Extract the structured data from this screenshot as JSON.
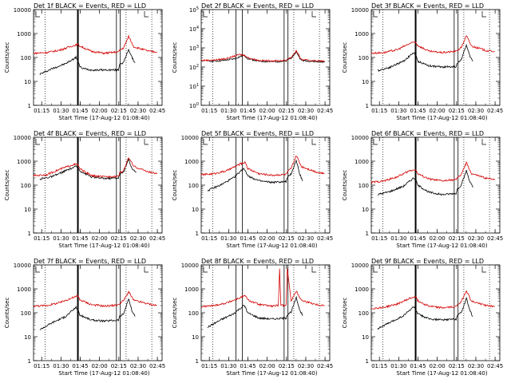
{
  "figure": {
    "time_ticks": [
      "01:15",
      "01:30",
      "01:45",
      "02:00",
      "02:15",
      "02:30",
      "02:45"
    ],
    "xlabel": "Start Time (17-Aug-12 01:08:40)",
    "ylabel": "Counts/sec"
  },
  "chart_data": [
    {
      "type": "line",
      "panel": 1,
      "title": "Det 1f BLACK = Events, RED = LLD",
      "x_unit": "minutes since 01:08:40",
      "xlim": [
        0,
        100
      ],
      "yscale": "log",
      "ylim": [
        1,
        10000
      ],
      "ytick_labels": [
        "1",
        "10",
        "100",
        "1000",
        "10000"
      ],
      "series": [
        {
          "name": "Events",
          "color": "#000000",
          "x": [
            5,
            15,
            25,
            33,
            34.5,
            36,
            38,
            45,
            55,
            66,
            67,
            70,
            74,
            76.5,
            79
          ],
          "y": [
            20,
            35,
            55,
            100,
            80,
            40,
            35,
            30,
            30,
            30,
            55,
            60,
            220,
            100,
            60
          ]
        },
        {
          "name": "LLD",
          "color": "#d40000",
          "x": [
            0,
            10,
            20,
            30,
            34.5,
            36,
            45,
            55,
            66,
            67,
            70,
            74,
            78,
            90,
            96
          ],
          "y": [
            150,
            160,
            200,
            300,
            350,
            300,
            180,
            150,
            170,
            200,
            250,
            750,
            280,
            180,
            170
          ]
        }
      ],
      "vlines": [
        {
          "x": [
            34.5
          ],
          "style": "thick"
        },
        {
          "x": [
            64.5,
            67.5
          ],
          "style": "double"
        },
        {
          "x": [
            9,
            72,
            92
          ],
          "style": "dotted"
        }
      ]
    },
    {
      "type": "line",
      "panel": 2,
      "title": "Det 2f BLACK = Events, RED = LLD",
      "x_unit": "minutes since 01:08:40",
      "xlim": [
        0,
        100
      ],
      "yscale": "log",
      "ylim": [
        1,
        100000
      ],
      "ytick_labels": [
        "10^0",
        "10^1",
        "10^2",
        "10^3",
        "10^4",
        "10^5"
      ],
      "series": [
        {
          "name": "Events",
          "color": "#000000",
          "x": [
            5,
            15,
            25,
            33,
            34.5,
            36,
            45,
            55,
            66,
            67,
            70,
            74,
            78,
            90,
            96
          ],
          "y": [
            200,
            210,
            260,
            400,
            360,
            280,
            200,
            190,
            200,
            240,
            300,
            600,
            220,
            190,
            185
          ]
        },
        {
          "name": "LLD",
          "color": "#d40000",
          "x": [
            0,
            10,
            20,
            30,
            34.5,
            36,
            45,
            55,
            66,
            67,
            70,
            74,
            78,
            90,
            96
          ],
          "y": [
            220,
            230,
            280,
            450,
            400,
            310,
            220,
            210,
            220,
            260,
            320,
            700,
            240,
            210,
            200
          ]
        }
      ],
      "vlines": [
        {
          "x": [
            27,
            32
          ],
          "style": "double"
        },
        {
          "x": [
            64.5,
            67.5
          ],
          "style": "double"
        },
        {
          "x": [
            9,
            72,
            92
          ],
          "style": "dotted"
        }
      ]
    },
    {
      "type": "line",
      "panel": 3,
      "title": "Det 3f BLACK = Events, RED = LLD",
      "x_unit": "minutes since 01:08:40",
      "xlim": [
        0,
        100
      ],
      "yscale": "log",
      "ylim": [
        1,
        10000
      ],
      "ytick_labels": [
        "1",
        "10",
        "100",
        "1000",
        "10000"
      ],
      "series": [
        {
          "name": "Events",
          "color": "#000000",
          "x": [
            5,
            15,
            25,
            33,
            34.5,
            36,
            45,
            55,
            66,
            67,
            70,
            74,
            76.5,
            79
          ],
          "y": [
            28,
            40,
            70,
            160,
            130,
            70,
            45,
            40,
            42,
            60,
            80,
            350,
            120,
            70
          ]
        },
        {
          "name": "LLD",
          "color": "#d40000",
          "x": [
            0,
            10,
            20,
            30,
            34.5,
            36,
            45,
            55,
            66,
            67,
            70,
            74,
            78,
            90,
            96
          ],
          "y": [
            150,
            160,
            210,
            380,
            450,
            320,
            180,
            160,
            180,
            200,
            260,
            800,
            300,
            190,
            180
          ]
        }
      ],
      "vlines": [
        {
          "x": [
            34.5
          ],
          "style": "thick"
        },
        {
          "x": [
            64.5,
            67.5
          ],
          "style": "double"
        },
        {
          "x": [
            9,
            72,
            92
          ],
          "style": "dotted"
        }
      ]
    },
    {
      "type": "line",
      "panel": 4,
      "title": "Det 4f BLACK = Events, RED = LLD",
      "x_unit": "minutes since 01:08:40",
      "xlim": [
        0,
        100
      ],
      "yscale": "log",
      "ylim": [
        1,
        10000
      ],
      "ytick_labels": [
        "1",
        "10",
        "100",
        "1000",
        "10000"
      ],
      "series": [
        {
          "name": "Events",
          "color": "#000000",
          "x": [
            5,
            15,
            25,
            33,
            34.5,
            36,
            45,
            55,
            66,
            67,
            70,
            74,
            76.5,
            80
          ],
          "y": [
            180,
            230,
            400,
            600,
            550,
            400,
            220,
            190,
            200,
            280,
            350,
            1200,
            500,
            350
          ]
        },
        {
          "name": "LLD",
          "color": "#d40000",
          "x": [
            0,
            10,
            20,
            30,
            34.5,
            36,
            45,
            55,
            66,
            67,
            70,
            74,
            78,
            90,
            96
          ],
          "y": [
            250,
            270,
            450,
            700,
            750,
            480,
            250,
            220,
            240,
            320,
            400,
            1400,
            600,
            350,
            300
          ]
        }
      ],
      "vlines": [
        {
          "x": [
            34.5
          ],
          "style": "thick"
        },
        {
          "x": [
            64.5,
            67.5
          ],
          "style": "double"
        },
        {
          "x": [
            9,
            72,
            92
          ],
          "style": "dotted"
        }
      ]
    },
    {
      "type": "line",
      "panel": 5,
      "title": "Det 5f BLACK = Events, RED = LLD",
      "x_unit": "minutes since 01:08:40",
      "xlim": [
        0,
        100
      ],
      "yscale": "log",
      "ylim": [
        1,
        10000
      ],
      "ytick_labels": [
        "1",
        "10",
        "100",
        "1000",
        "10000"
      ],
      "series": [
        {
          "name": "Events",
          "color": "#000000",
          "x": [
            5,
            15,
            25,
            33,
            34.5,
            36,
            45,
            55,
            66,
            67,
            70,
            74,
            76.5,
            79
          ],
          "y": [
            60,
            100,
            200,
            500,
            400,
            250,
            150,
            130,
            140,
            200,
            300,
            1100,
            300,
            150
          ]
        },
        {
          "name": "LLD",
          "color": "#d40000",
          "x": [
            0,
            10,
            20,
            30,
            34.5,
            36,
            45,
            55,
            66,
            67,
            70,
            74,
            78,
            90,
            96
          ],
          "y": [
            270,
            300,
            400,
            750,
            900,
            500,
            300,
            260,
            280,
            350,
            500,
            1700,
            600,
            350,
            300
          ]
        }
      ],
      "vlines": [
        {
          "x": [
            27,
            32
          ],
          "style": "double"
        },
        {
          "x": [
            64.5,
            67.5
          ],
          "style": "double"
        },
        {
          "x": [
            9,
            72,
            92
          ],
          "style": "dotted"
        }
      ]
    },
    {
      "type": "line",
      "panel": 6,
      "title": "Det 6f BLACK = Events, RED = LLD",
      "x_unit": "minutes since 01:08:40",
      "xlim": [
        0,
        100
      ],
      "yscale": "log",
      "ylim": [
        1,
        10000
      ],
      "ytick_labels": [
        "1",
        "10",
        "100",
        "1000",
        "10000"
      ],
      "series": [
        {
          "name": "Events",
          "color": "#000000",
          "x": [
            5,
            15,
            25,
            33,
            34.5,
            36,
            45,
            55,
            66,
            67,
            70,
            74,
            76.5,
            79
          ],
          "y": [
            40,
            55,
            90,
            200,
            170,
            100,
            50,
            40,
            45,
            70,
            100,
            400,
            150,
            80
          ]
        },
        {
          "name": "LLD",
          "color": "#d40000",
          "x": [
            0,
            10,
            20,
            30,
            34.5,
            36,
            45,
            55,
            66,
            67,
            70,
            74,
            78,
            90,
            96
          ],
          "y": [
            130,
            150,
            220,
            400,
            450,
            300,
            180,
            150,
            170,
            200,
            280,
            850,
            300,
            190,
            180
          ]
        }
      ],
      "vlines": [
        {
          "x": [
            34.5
          ],
          "style": "thick"
        },
        {
          "x": [
            64.5,
            67.5
          ],
          "style": "double"
        },
        {
          "x": [
            9,
            72,
            92
          ],
          "style": "dotted"
        }
      ]
    },
    {
      "type": "line",
      "panel": 7,
      "title": "Det 7f BLACK = Events, RED = LLD",
      "x_unit": "minutes since 01:08:40",
      "xlim": [
        0,
        100
      ],
      "yscale": "log",
      "ylim": [
        1,
        10000
      ],
      "ytick_labels": [
        "1",
        "10",
        "100",
        "1000",
        "10000"
      ],
      "series": [
        {
          "name": "Events",
          "color": "#000000",
          "x": [
            5,
            15,
            25,
            33,
            34.5,
            36,
            45,
            55,
            66,
            67,
            70,
            74,
            76.5,
            79
          ],
          "y": [
            20,
            40,
            70,
            170,
            140,
            80,
            50,
            45,
            50,
            70,
            90,
            380,
            120,
            70
          ]
        },
        {
          "name": "LLD",
          "color": "#d40000",
          "x": [
            0,
            10,
            20,
            30,
            34.5,
            36,
            45,
            55,
            66,
            67,
            70,
            74,
            78,
            90,
            96
          ],
          "y": [
            190,
            200,
            260,
            420,
            500,
            350,
            220,
            190,
            210,
            250,
            320,
            750,
            330,
            230,
            200
          ]
        }
      ],
      "vlines": [
        {
          "x": [
            34.5
          ],
          "style": "thick"
        },
        {
          "x": [
            64.5,
            67.5
          ],
          "style": "double"
        },
        {
          "x": [
            9,
            72,
            92
          ],
          "style": "dotted"
        }
      ]
    },
    {
      "type": "line",
      "panel": 8,
      "title": "Det 8f BLACK = Events, RED = LLD",
      "x_unit": "minutes since 01:08:40",
      "xlim": [
        0,
        100
      ],
      "yscale": "log",
      "ylim": [
        1,
        10000
      ],
      "ytick_labels": [
        "1",
        "10",
        "100",
        "1000",
        "10000"
      ],
      "series": [
        {
          "name": "Events",
          "color": "#000000",
          "x": [
            5,
            15,
            25,
            33,
            34.5,
            36,
            45,
            55,
            66,
            67,
            70,
            74,
            76.5,
            79
          ],
          "y": [
            25,
            50,
            90,
            200,
            170,
            100,
            60,
            55,
            60,
            85,
            110,
            420,
            140,
            75
          ]
        },
        {
          "name": "LLD",
          "color": "#d40000",
          "x": [
            0,
            10,
            20,
            30,
            34.5,
            36,
            45,
            55,
            60,
            61,
            62,
            66,
            67,
            70,
            74,
            78,
            90,
            96
          ],
          "y": [
            180,
            200,
            260,
            420,
            520,
            350,
            220,
            190,
            200,
            7000,
            200,
            210,
            7000,
            320,
            800,
            330,
            220,
            200
          ]
        }
      ],
      "vlines": [
        {
          "x": [
            27,
            32
          ],
          "style": "double"
        },
        {
          "x": [
            64.5,
            67.5
          ],
          "style": "double"
        },
        {
          "x": [
            9,
            72,
            92
          ],
          "style": "dotted"
        }
      ]
    },
    {
      "type": "line",
      "panel": 9,
      "title": "Det 9f BLACK = Events, RED = LLD",
      "x_unit": "minutes since 01:08:40",
      "xlim": [
        0,
        100
      ],
      "yscale": "log",
      "ylim": [
        1,
        10000
      ],
      "ytick_labels": [
        "1",
        "10",
        "100",
        "1000",
        "10000"
      ],
      "series": [
        {
          "name": "Events",
          "color": "#000000",
          "x": [
            5,
            15,
            25,
            33,
            34.5,
            36,
            45,
            55,
            66,
            67,
            70,
            74,
            76.5,
            79
          ],
          "y": [
            22,
            40,
            75,
            180,
            150,
            90,
            55,
            50,
            55,
            80,
            100,
            420,
            130,
            70
          ]
        },
        {
          "name": "LLD",
          "color": "#d40000",
          "x": [
            0,
            10,
            20,
            30,
            34.5,
            36,
            45,
            55,
            66,
            67,
            70,
            74,
            78,
            90,
            96
          ],
          "y": [
            150,
            170,
            230,
            400,
            480,
            320,
            190,
            160,
            180,
            220,
            290,
            850,
            300,
            200,
            180
          ]
        }
      ],
      "vlines": [
        {
          "x": [
            34.5
          ],
          "style": "thick"
        },
        {
          "x": [
            64.5,
            67.5
          ],
          "style": "double"
        },
        {
          "x": [
            9,
            72,
            92
          ],
          "style": "dotted"
        }
      ]
    }
  ]
}
